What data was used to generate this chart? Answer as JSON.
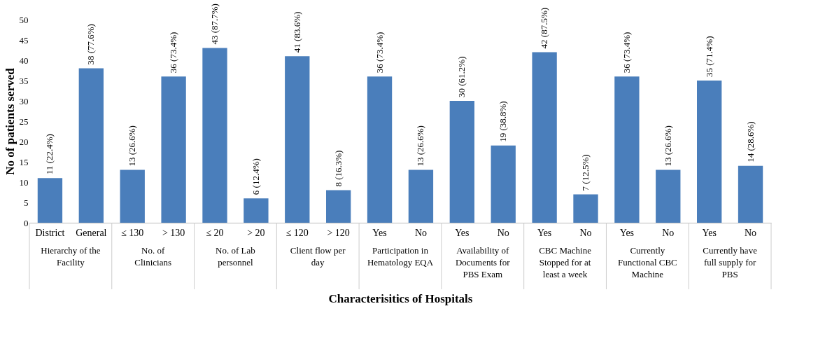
{
  "chart_data": {
    "type": "bar",
    "xlabel": "Characterisitics of Hospitals",
    "ylabel": "No of patients served",
    "categories": [
      "District",
      "General",
      "≤ 130",
      "> 130",
      "≤ 20",
      "> 20",
      "≤ 120",
      "> 120",
      "Yes",
      "No",
      "Yes",
      "No",
      "Yes",
      "No",
      "Yes",
      "No",
      "Yes",
      "No"
    ],
    "values": [
      11,
      38,
      13,
      36,
      43,
      6,
      41,
      8,
      36,
      13,
      30,
      19,
      42,
      7,
      36,
      13,
      35,
      14
    ],
    "value_labels": [
      "11 (22.4%)",
      "38 (77.6%)",
      "13 (26.6%)",
      "36 (73.4%)",
      "43 (87.7%)",
      "6 (12.4%)",
      "41 (83.6%)",
      "8 (16.3%)",
      "36 (73.4%)",
      "13 (26.6%)",
      "30 (61.2%)",
      "19 (38.8%)",
      "42 (87.5%)",
      "7 (12.5%)",
      "36 (73.4%)",
      "13 (26.6%)",
      "35 (71.4%)",
      "14 (28.6%)"
    ],
    "annotations": [
      "Hierarchy of the Facility",
      "No. of Clinicians",
      "No. of Lab personnel",
      "Client flow per day",
      "Participation in Hematology EQA",
      "Availability of Documents for PBS Exam",
      "CBC Machine Stopped for at least a week",
      "Currently Functional CBC Machine",
      "Currently have full supply for PBS"
    ],
    "color": "#4a7ebb",
    "ylim": [
      0,
      50
    ],
    "yticks": [
      0,
      5,
      10,
      15,
      20,
      25,
      30,
      35,
      40,
      45,
      50
    ]
  }
}
